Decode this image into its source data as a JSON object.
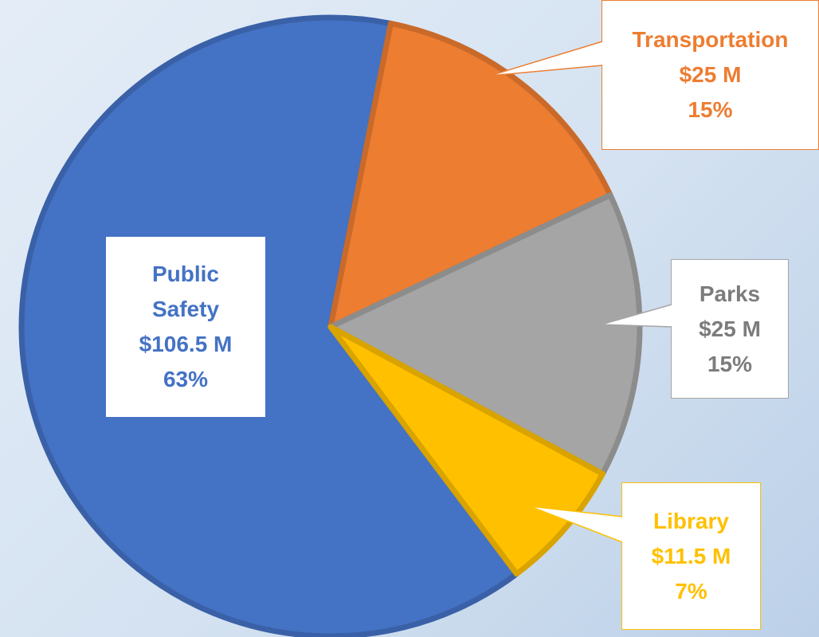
{
  "chart_data": {
    "type": "pie",
    "categories": [
      "Public Safety",
      "Transportation",
      "Parks",
      "Library"
    ],
    "values": [
      106.5,
      25,
      25,
      11.5
    ],
    "value_labels": [
      "$106.5 M",
      "$25 M",
      "$25 M",
      "$11.5 M"
    ],
    "percents": [
      63,
      15,
      15,
      7
    ],
    "percent_labels": [
      "63%",
      "15%",
      "15%",
      "7%"
    ],
    "colors": [
      "#4472c4",
      "#ed7d31",
      "#a5a5a5",
      "#ffc000"
    ]
  }
}
